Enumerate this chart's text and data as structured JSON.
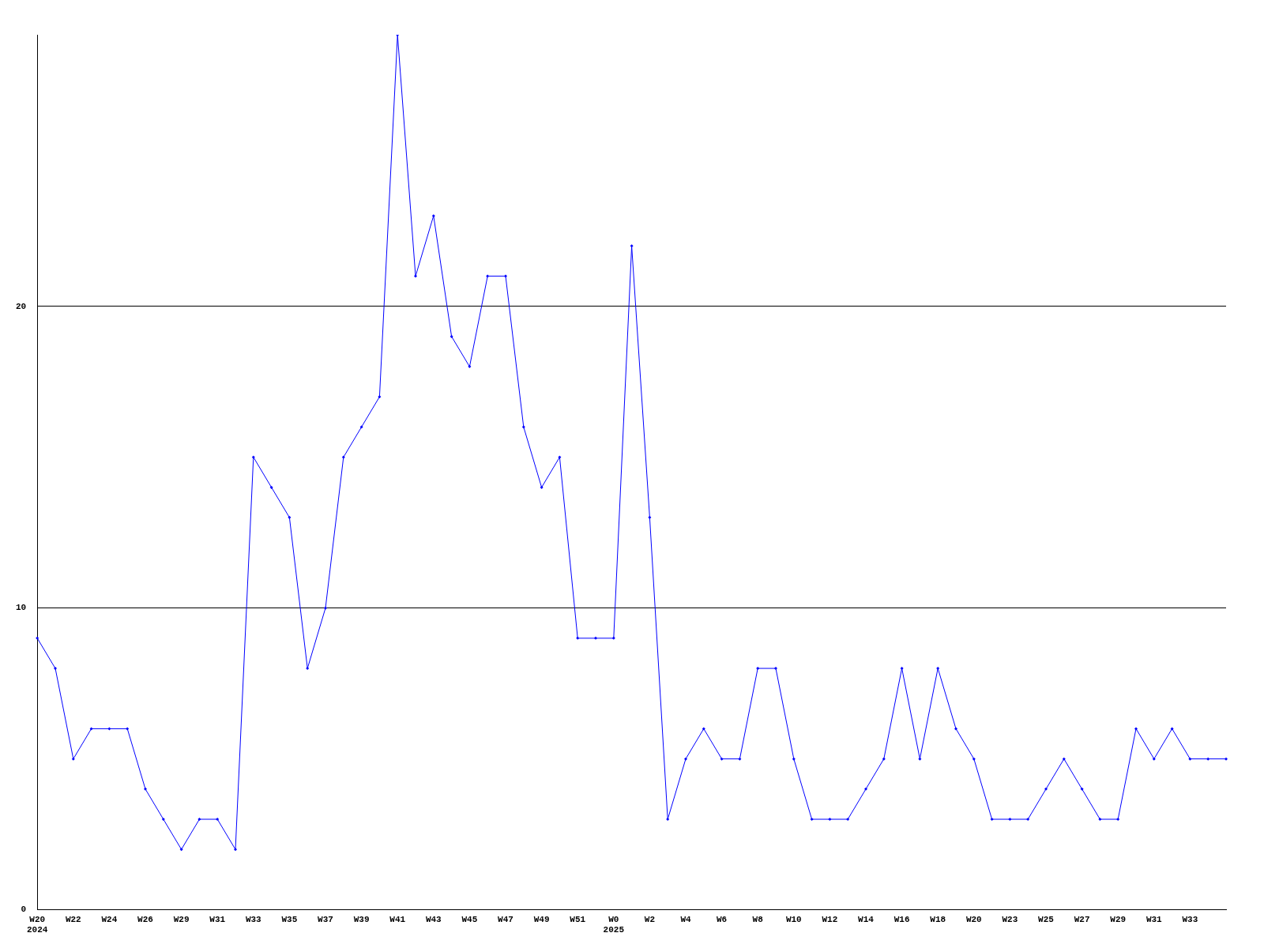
{
  "chart_data": {
    "type": "line",
    "categories": [
      "W20\n2024",
      null,
      "W22",
      null,
      "W24",
      null,
      "W26",
      null,
      "W29",
      null,
      "W31",
      null,
      "W33",
      null,
      "W35",
      null,
      "W37",
      null,
      "W39",
      null,
      "W41",
      null,
      "W43",
      null,
      "W45",
      null,
      "W47",
      null,
      "W49",
      null,
      "W51",
      null,
      "W0\n2025",
      null,
      "W2",
      null,
      "W4",
      null,
      "W6",
      null,
      "W8",
      null,
      "W10",
      null,
      "W12",
      null,
      "W14",
      null,
      "W16",
      null,
      "W18",
      null,
      "W20",
      null,
      "W23",
      null,
      "W25",
      null,
      "W27",
      null,
      "W29",
      null,
      "W31",
      null,
      "W33",
      null,
      null
    ],
    "series": [
      {
        "color": "#0000ff",
        "values": [
          9,
          8,
          5,
          6,
          6,
          6,
          4,
          3,
          2,
          3,
          3,
          2,
          15,
          14,
          13,
          8,
          10,
          15,
          16,
          17,
          29,
          21,
          23,
          19,
          18,
          21,
          21,
          16,
          14,
          15,
          9,
          9,
          9,
          22,
          13,
          3,
          5,
          6,
          5,
          5,
          8,
          8,
          5,
          3,
          3,
          3,
          4,
          5,
          8,
          5,
          8,
          6,
          5,
          3,
          3,
          3,
          4,
          5,
          4,
          3,
          3,
          6,
          5,
          6,
          5,
          5,
          5
        ]
      }
    ],
    "ylim": [
      0,
      29
    ],
    "yticks": [
      0,
      10,
      20
    ],
    "grid": "y",
    "legend": false,
    "marker": "diamond",
    "line_style": "solid"
  }
}
